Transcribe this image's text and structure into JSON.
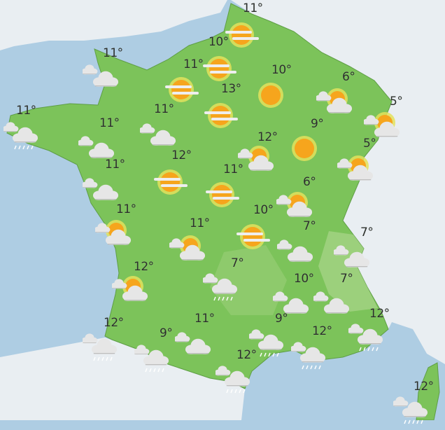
{
  "map": {
    "colors": {
      "sea": "#aecde3",
      "neighbor_land": "#e9eef2",
      "france": "#7cc35a",
      "mountains": "#a9d68a",
      "sun": "#f6a51d",
      "sun_halo": "#e3e25d",
      "cloud": "#e6e6e6",
      "fog": "#eeeeee"
    },
    "locations": [
      {
        "temp": "11°",
        "icon": "sun-fog"
      },
      {
        "temp": "10°",
        "icon": "sun-fog"
      },
      {
        "temp": "11°",
        "icon": "cloudy"
      },
      {
        "temp": "11°",
        "icon": "sun-fog"
      },
      {
        "temp": "10°",
        "icon": "sun"
      },
      {
        "temp": "6°",
        "icon": "partly-cloudy"
      },
      {
        "temp": "13°",
        "icon": "sun-fog"
      },
      {
        "temp": "11°",
        "icon": "cloudy"
      },
      {
        "temp": "11°",
        "icon": "rain"
      },
      {
        "temp": "11°",
        "icon": "cloudy"
      },
      {
        "temp": "5°",
        "icon": "partly-cloudy"
      },
      {
        "temp": "12°",
        "icon": "partly-cloudy"
      },
      {
        "temp": "9°",
        "icon": "sun"
      },
      {
        "temp": "5°",
        "icon": "partly-cloudy"
      },
      {
        "temp": "12°",
        "icon": "sun-fog"
      },
      {
        "temp": "11°",
        "icon": "cloudy"
      },
      {
        "temp": "11°",
        "icon": "sun-fog"
      },
      {
        "temp": "6°",
        "icon": "partly-cloudy"
      },
      {
        "temp": "11°",
        "icon": "partly-cloudy"
      },
      {
        "temp": "10°",
        "icon": "sun-fog"
      },
      {
        "temp": "11°",
        "icon": "partly-cloudy"
      },
      {
        "temp": "7°",
        "icon": "cloudy"
      },
      {
        "temp": "7°",
        "icon": "cloudy"
      },
      {
        "temp": "7°",
        "icon": "rain"
      },
      {
        "temp": "12°",
        "icon": "partly-cloudy"
      },
      {
        "temp": "10°",
        "icon": "cloudy"
      },
      {
        "temp": "7°",
        "icon": "cloudy"
      },
      {
        "temp": "11°",
        "icon": "cloudy"
      },
      {
        "temp": "9°",
        "icon": "rain"
      },
      {
        "temp": "9°",
        "icon": "rain"
      },
      {
        "temp": "12°",
        "icon": "rain"
      },
      {
        "temp": "12°",
        "icon": "rain"
      },
      {
        "temp": "12°",
        "icon": "rain"
      },
      {
        "temp": "12°",
        "icon": "rain"
      },
      {
        "temp": "12°",
        "icon": "rain"
      }
    ]
  }
}
